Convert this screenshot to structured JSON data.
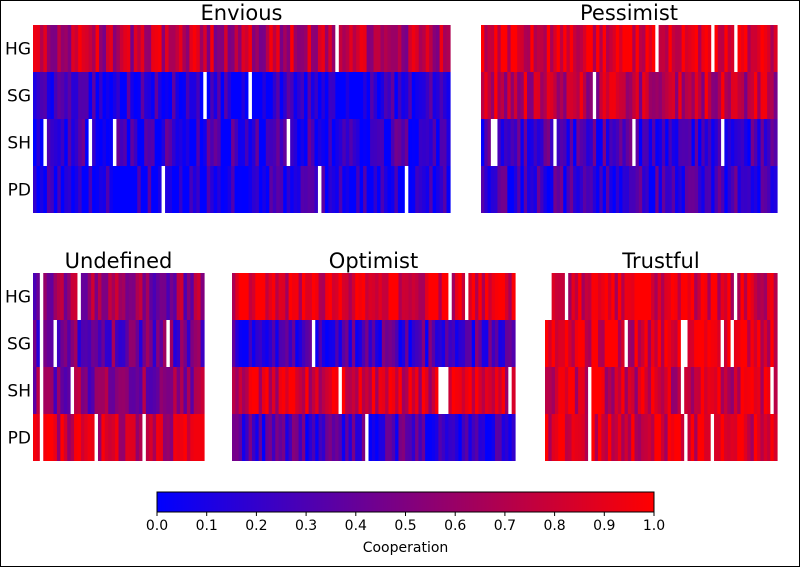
{
  "chart_data": {
    "type": "heatmap",
    "rows": [
      "HG",
      "SG",
      "SH",
      "PD"
    ],
    "color_scale": {
      "min": 0.0,
      "max": 1.0,
      "low_color": "#0000ff",
      "high_color": "#ff0000",
      "gap_color": "#ffffff"
    },
    "colorbar": {
      "label": "Cooperation",
      "ticks": [
        "0.0",
        "0.1",
        "0.2",
        "0.3",
        "0.4",
        "0.5",
        "0.6",
        "0.7",
        "0.8",
        "0.9",
        "1.0"
      ]
    },
    "panels": [
      {
        "title": "Envious",
        "mean_cooperation": [
          0.72,
          0.12,
          0.18,
          0.1
        ],
        "n_columns": 120
      },
      {
        "title": "Pessimist",
        "mean_cooperation": [
          0.93,
          0.72,
          0.22,
          0.2
        ],
        "n_columns": 90
      },
      {
        "title": "Undefined",
        "mean_cooperation": [
          0.55,
          0.4,
          0.52,
          0.8
        ],
        "n_columns": 50
      },
      {
        "title": "Optimist",
        "mean_cooperation": [
          0.9,
          0.28,
          0.85,
          0.25
        ],
        "n_columns": 85
      },
      {
        "title": "Trustful",
        "mean_cooperation": [
          0.88,
          0.85,
          0.82,
          0.88
        ],
        "n_columns": 70
      }
    ]
  }
}
